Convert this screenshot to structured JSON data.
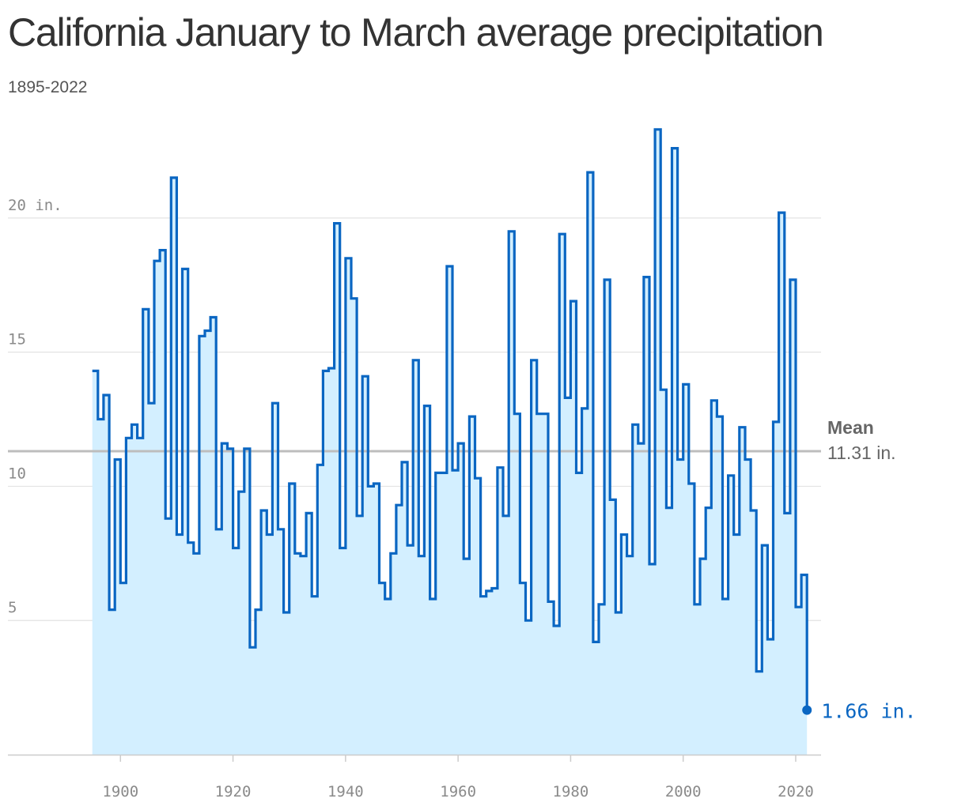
{
  "title": "California January to March average precipitation",
  "subtitle": "1895-2022",
  "chart_data": {
    "type": "area",
    "step": true,
    "ylim": [
      0,
      23.5
    ],
    "xlim": [
      1880,
      2024.5
    ],
    "yticks": [
      5,
      10,
      15,
      20
    ],
    "ytick_labels": [
      "5",
      "10",
      "15",
      "20 in."
    ],
    "xticks": [
      1900,
      1920,
      1940,
      1960,
      1980,
      2000,
      2020
    ],
    "xtick_labels": [
      "1900",
      "1920",
      "1940",
      "1960",
      "1980",
      "2000",
      "2020"
    ],
    "mean": {
      "label": "Mean",
      "value": 11.31,
      "value_label": "11.31 in."
    },
    "last_point": {
      "x": 2022,
      "y": 1.66,
      "label": "1.66 in."
    },
    "grid": true,
    "x": [
      1895,
      1896,
      1897,
      1898,
      1899,
      1900,
      1901,
      1902,
      1903,
      1904,
      1905,
      1906,
      1907,
      1908,
      1909,
      1910,
      1911,
      1912,
      1913,
      1914,
      1915,
      1916,
      1917,
      1918,
      1919,
      1920,
      1921,
      1922,
      1923,
      1924,
      1925,
      1926,
      1927,
      1928,
      1929,
      1930,
      1931,
      1932,
      1933,
      1934,
      1935,
      1936,
      1937,
      1938,
      1939,
      1940,
      1941,
      1942,
      1943,
      1944,
      1945,
      1946,
      1947,
      1948,
      1949,
      1950,
      1951,
      1952,
      1953,
      1954,
      1955,
      1956,
      1957,
      1958,
      1959,
      1960,
      1961,
      1962,
      1963,
      1964,
      1965,
      1966,
      1967,
      1968,
      1969,
      1970,
      1971,
      1972,
      1973,
      1974,
      1975,
      1976,
      1977,
      1978,
      1979,
      1980,
      1981,
      1982,
      1983,
      1984,
      1985,
      1986,
      1987,
      1988,
      1989,
      1990,
      1991,
      1992,
      1993,
      1994,
      1995,
      1996,
      1997,
      1998,
      1999,
      2000,
      2001,
      2002,
      2003,
      2004,
      2005,
      2006,
      2007,
      2008,
      2009,
      2010,
      2011,
      2012,
      2013,
      2014,
      2015,
      2016,
      2017,
      2018,
      2019,
      2020,
      2021,
      2022
    ],
    "values": [
      14.3,
      12.5,
      13.4,
      5.4,
      11.0,
      6.4,
      11.8,
      12.3,
      11.8,
      16.6,
      13.1,
      18.4,
      18.8,
      8.8,
      21.5,
      8.2,
      18.1,
      7.9,
      7.5,
      15.6,
      15.8,
      16.3,
      8.4,
      11.6,
      11.4,
      7.7,
      9.8,
      11.4,
      4.0,
      5.4,
      9.1,
      8.2,
      13.1,
      8.4,
      5.3,
      10.1,
      7.5,
      7.4,
      9.0,
      5.9,
      10.8,
      14.3,
      14.4,
      19.8,
      7.7,
      18.5,
      17.0,
      8.9,
      14.1,
      10.0,
      10.1,
      6.4,
      5.8,
      7.5,
      9.3,
      10.9,
      7.8,
      14.7,
      7.4,
      13.0,
      5.8,
      10.5,
      10.5,
      18.2,
      10.6,
      11.6,
      7.3,
      12.6,
      10.3,
      5.9,
      6.1,
      6.2,
      10.7,
      8.9,
      19.5,
      12.7,
      6.4,
      5.0,
      14.7,
      12.7,
      12.7,
      5.7,
      4.8,
      19.4,
      13.3,
      16.9,
      10.5,
      12.9,
      21.7,
      4.2,
      5.6,
      17.7,
      9.5,
      5.3,
      8.2,
      7.4,
      12.3,
      11.6,
      17.8,
      7.1,
      23.3,
      13.6,
      9.2,
      22.6,
      11.0,
      13.8,
      10.1,
      5.6,
      7.3,
      9.2,
      13.2,
      12.6,
      5.8,
      10.4,
      8.2,
      12.2,
      11.0,
      9.1,
      3.1,
      7.8,
      4.3,
      12.4,
      20.2,
      9.0,
      17.7,
      5.5,
      6.7,
      1.66
    ]
  },
  "colors": {
    "line": "#0a66c2",
    "fill": "#d3efff",
    "mean_line": "#bdbdbd",
    "grid": "#e3e3e3",
    "axis": "#cccccc"
  }
}
